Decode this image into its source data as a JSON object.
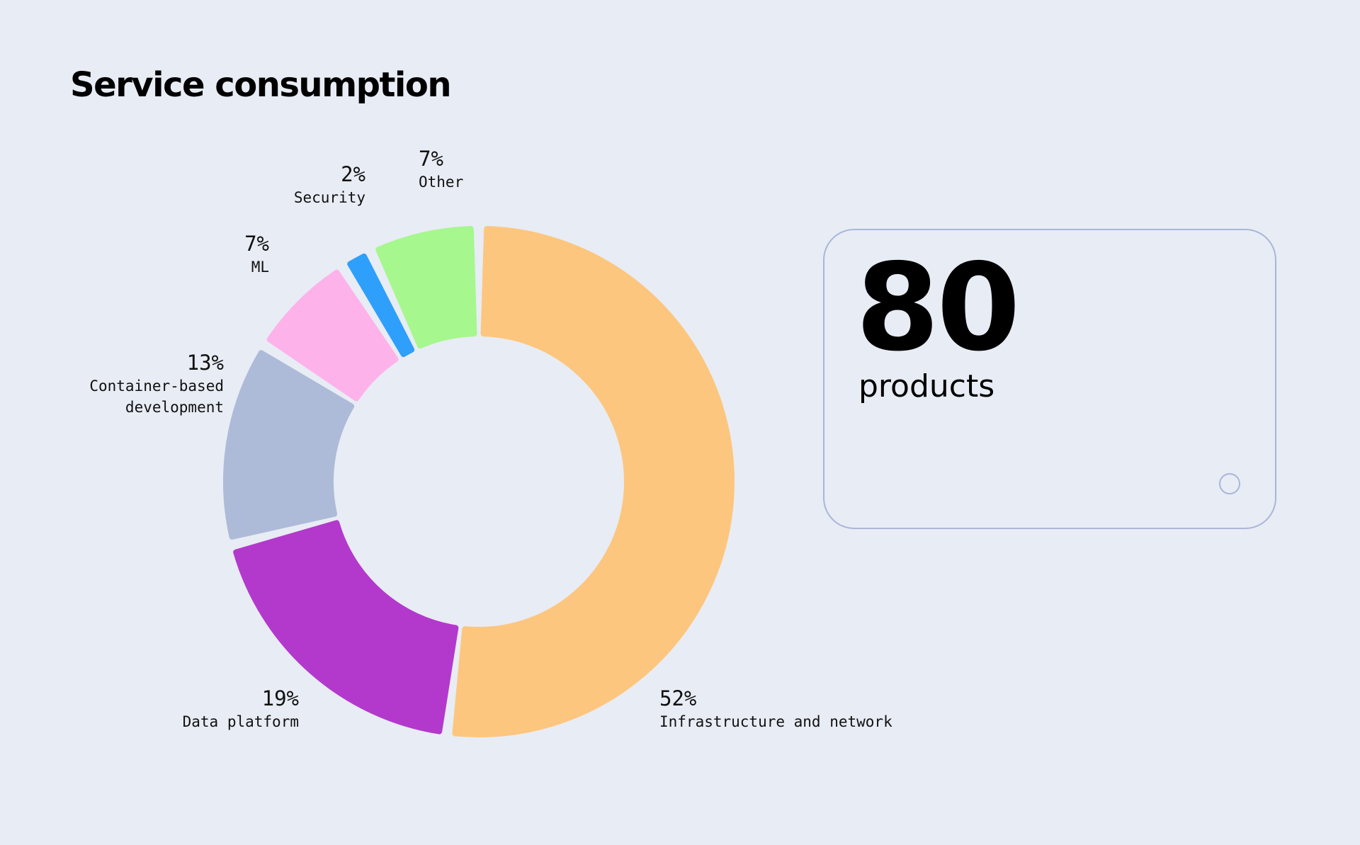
{
  "chart_data": {
    "type": "donut",
    "title": "Service consumption",
    "categories": [
      "Infrastructure and network",
      "Data platform",
      "Container-based development",
      "ML",
      "Security",
      "Other"
    ],
    "values": [
      52,
      19,
      13,
      7,
      2,
      7
    ],
    "value_labels": [
      "52%",
      "19%",
      "13%",
      "7%",
      "2%",
      "7%"
    ],
    "colors": [
      "#fdc67e",
      "#b339cc",
      "#adbbd9",
      "#feb2ea",
      "#2e9ffb",
      "#a6f78e"
    ]
  },
  "card": {
    "number": 80,
    "label": "products"
  }
}
